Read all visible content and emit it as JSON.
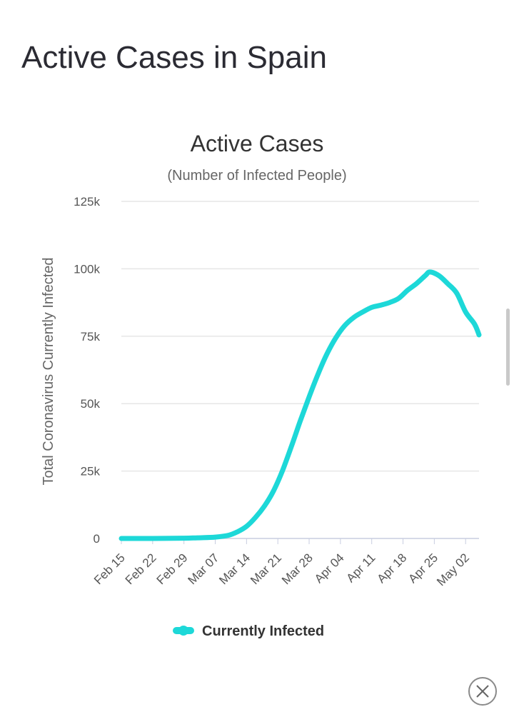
{
  "page": {
    "heading": "Active Cases in Spain"
  },
  "chart_data": {
    "type": "line",
    "title": "Active Cases",
    "subtitle": "(Number of Infected People)",
    "ylabel": "Total Coronavirus Currently Infected",
    "xlabel": "",
    "ylim": [
      0,
      125000
    ],
    "y_ticks": [
      0,
      25000,
      50000,
      75000,
      100000,
      125000
    ],
    "y_tick_labels": [
      "0",
      "25k",
      "50k",
      "75k",
      "100k",
      "125k"
    ],
    "x_start": "Feb 15",
    "x_end": "May 05",
    "x_tick_labels": [
      "Feb 15",
      "Feb 22",
      "Feb 29",
      "Mar 07",
      "Mar 14",
      "Mar 21",
      "Mar 28",
      "Apr 04",
      "Apr 11",
      "Apr 18",
      "Apr 25",
      "May 02"
    ],
    "grid": true,
    "legend_position": "bottom",
    "series": [
      {
        "name": "Currently Infected",
        "color": "#1dd8d8",
        "x": [
          "Feb 15",
          "Feb 22",
          "Feb 29",
          "Mar 03",
          "Mar 07",
          "Mar 10",
          "Mar 12",
          "Mar 14",
          "Mar 16",
          "Mar 18",
          "Mar 20",
          "Mar 22",
          "Mar 24",
          "Mar 26",
          "Mar 28",
          "Mar 30",
          "Apr 01",
          "Apr 03",
          "Apr 05",
          "Apr 07",
          "Apr 09",
          "Apr 11",
          "Apr 13",
          "Apr 15",
          "Apr 17",
          "Apr 19",
          "Apr 21",
          "Apr 23",
          "Apr 24",
          "Apr 26",
          "Apr 28",
          "Apr 30",
          "May 02",
          "May 04",
          "May 05"
        ],
        "values": [
          2,
          2,
          100,
          250,
          500,
          1200,
          2500,
          4500,
          7800,
          12000,
          17500,
          25000,
          34000,
          43500,
          52500,
          61000,
          68500,
          74500,
          79000,
          82000,
          84000,
          85700,
          86500,
          87500,
          89000,
          92000,
          94500,
          97500,
          98800,
          97500,
          94500,
          91000,
          84000,
          79500,
          75500
        ]
      }
    ]
  },
  "close": {
    "icon": "close-icon"
  }
}
